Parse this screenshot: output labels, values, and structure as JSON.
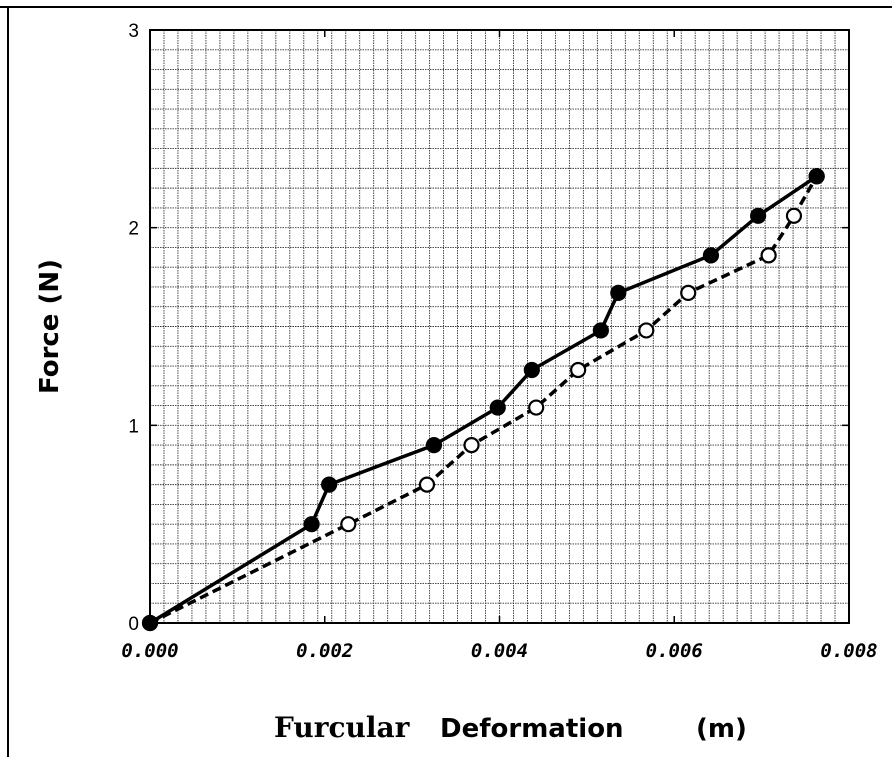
{
  "chart_data": {
    "type": "line",
    "title": "",
    "ylabel": "Force (N)",
    "xlabel_parts": [
      "Furcular",
      "Deformation",
      "(m)"
    ],
    "xlim": [
      0,
      0.008
    ],
    "ylim": [
      0,
      3
    ],
    "x_ticks": [
      "0.000",
      "0.002",
      "0.004",
      "0.006",
      "0.008"
    ],
    "y_ticks": [
      "0",
      "1",
      "2",
      "3"
    ],
    "grid": true,
    "legend": "none",
    "series": [
      {
        "style": "solid",
        "marker": "filled-circle",
        "color": "#000000",
        "points": [
          [
            0.0,
            0.0
          ],
          [
            0.00185,
            0.5
          ],
          [
            0.00205,
            0.7
          ],
          [
            0.00325,
            0.9
          ],
          [
            0.00398,
            1.09
          ],
          [
            0.00437,
            1.28
          ],
          [
            0.00516,
            1.48
          ],
          [
            0.00536,
            1.67
          ],
          [
            0.00642,
            1.86
          ],
          [
            0.00696,
            2.06
          ],
          [
            0.00763,
            2.26
          ]
        ]
      },
      {
        "style": "dashed",
        "marker": "open-circle",
        "color": "#000000",
        "points": [
          [
            0.0,
            0.0
          ],
          [
            0.00227,
            0.5
          ],
          [
            0.00317,
            0.7
          ],
          [
            0.00368,
            0.9
          ],
          [
            0.00442,
            1.09
          ],
          [
            0.0049,
            1.28
          ],
          [
            0.00568,
            1.48
          ],
          [
            0.00616,
            1.67
          ],
          [
            0.00708,
            1.86
          ],
          [
            0.00737,
            2.06
          ],
          [
            0.00763,
            2.26
          ]
        ]
      }
    ]
  }
}
